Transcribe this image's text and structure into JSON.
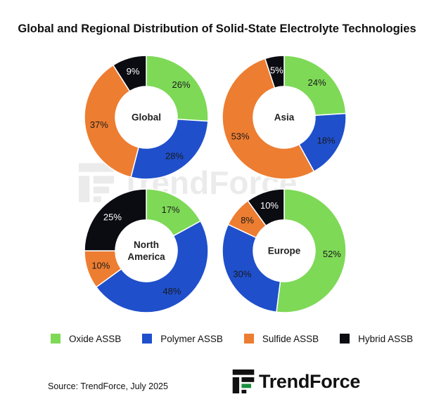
{
  "title": "Global and Regional Distribution of Solid-State Electrolyte Technologies",
  "chart_data": {
    "type": "donut",
    "title": "Global and Regional Distribution of Solid-State Electrolyte Technologies",
    "categories": [
      "Oxide ASSB",
      "Polymer ASSB",
      "Sulfide ASSB",
      "Hybrid ASSB"
    ],
    "colors": [
      "#7ED957",
      "#1F4FCB",
      "#ED7D31",
      "#0B0B12"
    ],
    "unit": "%",
    "legend_position": "bottom",
    "charts": [
      {
        "name": "Global",
        "values": [
          26,
          28,
          37,
          9
        ]
      },
      {
        "name": "Asia",
        "values": [
          24,
          18,
          53,
          5
        ]
      },
      {
        "name": "North America",
        "values": [
          17,
          48,
          10,
          25
        ]
      },
      {
        "name": "Europe",
        "values": [
          52,
          30,
          8,
          10
        ]
      }
    ]
  },
  "legend": [
    {
      "label": "Oxide ASSB",
      "color": "#7ED957"
    },
    {
      "label": "Polymer ASSB",
      "color": "#1F4FCB"
    },
    {
      "label": "Sulfide ASSB",
      "color": "#ED7D31"
    },
    {
      "label": "Hybrid ASSB",
      "color": "#0B0B12"
    }
  ],
  "source": "Source: TrendForce, July 2025",
  "logo_text": "TrendForce",
  "watermark_text": "TrendForce"
}
